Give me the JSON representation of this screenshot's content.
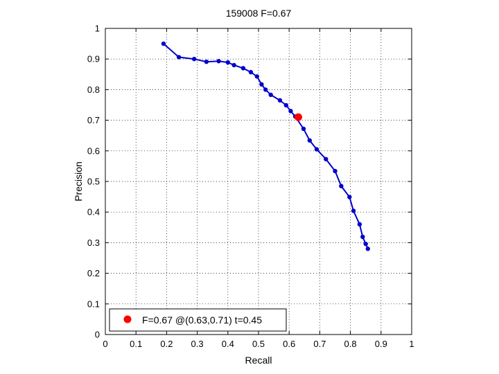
{
  "chart_data": {
    "type": "line",
    "title": "159008 F=0.67",
    "xlabel": "Recall",
    "ylabel": "Precision",
    "xlim": [
      0,
      1
    ],
    "ylim": [
      0,
      1
    ],
    "grid": true,
    "legend_position": "bottom-left",
    "xticks": [
      "0",
      "0.1",
      "0.2",
      "0.3",
      "0.4",
      "0.5",
      "0.6",
      "0.7",
      "0.8",
      "0.9",
      "1"
    ],
    "yticks": [
      "0",
      "0.1",
      "0.2",
      "0.3",
      "0.4",
      "0.5",
      "0.6",
      "0.7",
      "0.8",
      "0.9",
      "1"
    ],
    "series": [
      {
        "color": "#0000cc",
        "points": [
          [
            0.19,
            0.95
          ],
          [
            0.24,
            0.906
          ],
          [
            0.29,
            0.9
          ],
          [
            0.33,
            0.891
          ],
          [
            0.37,
            0.893
          ],
          [
            0.4,
            0.889
          ],
          [
            0.42,
            0.88
          ],
          [
            0.45,
            0.87
          ],
          [
            0.475,
            0.857
          ],
          [
            0.495,
            0.843
          ],
          [
            0.51,
            0.817
          ],
          [
            0.523,
            0.8
          ],
          [
            0.54,
            0.783
          ],
          [
            0.57,
            0.765
          ],
          [
            0.59,
            0.749
          ],
          [
            0.605,
            0.73
          ],
          [
            0.62,
            0.712
          ],
          [
            0.647,
            0.672
          ],
          [
            0.667,
            0.634
          ],
          [
            0.69,
            0.605
          ],
          [
            0.72,
            0.573
          ],
          [
            0.75,
            0.534
          ],
          [
            0.77,
            0.485
          ],
          [
            0.797,
            0.449
          ],
          [
            0.81,
            0.404
          ],
          [
            0.83,
            0.36
          ],
          [
            0.84,
            0.319
          ],
          [
            0.85,
            0.296
          ],
          [
            0.857,
            0.28
          ]
        ]
      }
    ],
    "highlight": {
      "x": 0.63,
      "y": 0.71,
      "color": "#ff0000",
      "legend_label": "F=0.67 @(0.63,0.71) t=0.45"
    }
  }
}
